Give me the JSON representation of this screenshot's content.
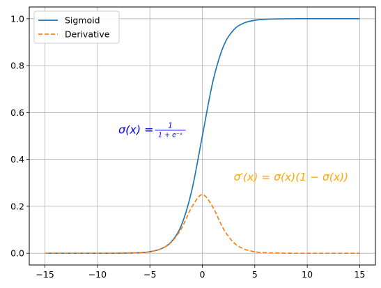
{
  "chart_data": {
    "type": "line",
    "xlim": [
      -16.5,
      16.5
    ],
    "ylim": [
      -0.05,
      1.05
    ],
    "xticks": [
      -15,
      -10,
      -5,
      0,
      5,
      10,
      15
    ],
    "xtick_labels": [
      "−15",
      "−10",
      "−5",
      "0",
      "5",
      "10",
      "15"
    ],
    "yticks": [
      0.0,
      0.2,
      0.4,
      0.6,
      0.8,
      1.0
    ],
    "ytick_labels": [
      "0.0",
      "0.2",
      "0.4",
      "0.6",
      "0.8",
      "1.0"
    ],
    "grid": true,
    "legend_position": "upper-left",
    "x": [
      -15,
      -12,
      -10,
      -8,
      -6,
      -5,
      -4,
      -3,
      -2,
      -1,
      0,
      1,
      2,
      3,
      4,
      5,
      6,
      8,
      10,
      12,
      15
    ],
    "series": [
      {
        "name": "Sigmoid",
        "color": "#1f77b4",
        "style": "solid",
        "values": [
          0.0,
          0.0,
          0.0,
          0.0003,
          0.0025,
          0.0067,
          0.018,
          0.047,
          0.119,
          0.269,
          0.5,
          0.731,
          0.881,
          0.953,
          0.982,
          0.9933,
          0.9975,
          0.9997,
          1.0,
          1.0,
          1.0
        ]
      },
      {
        "name": "Derivative",
        "color": "#ff7f0e",
        "style": "dashed",
        "values": [
          0.0,
          0.0,
          0.0,
          0.0003,
          0.0025,
          0.0066,
          0.0177,
          0.0452,
          0.105,
          0.197,
          0.25,
          0.197,
          0.105,
          0.0452,
          0.0177,
          0.0066,
          0.0025,
          0.0003,
          0.0,
          0.0,
          0.0
        ]
      }
    ],
    "annotations": [
      {
        "id": "sigmoid-formula",
        "x": -8,
        "y": 0.51,
        "color": "#0000ff",
        "main": "σ(x) = ",
        "frac_num": "1",
        "frac_den": "1 + e⁻ˣ"
      },
      {
        "id": "derivative-formula",
        "x": 3,
        "y": 0.31,
        "color": "#ffa500",
        "text": "σ′(x) = σ(x)(1 − σ(x))"
      }
    ]
  }
}
